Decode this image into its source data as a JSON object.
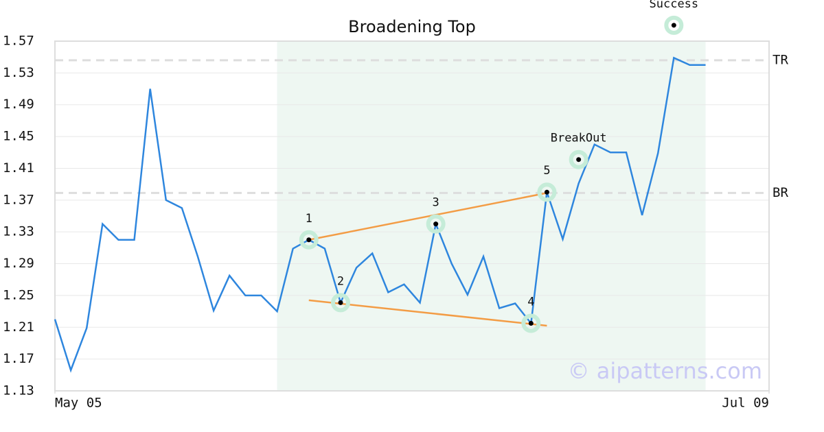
{
  "chart_data": {
    "type": "line",
    "title": "Broadening Top",
    "color": "#2e86de",
    "x": [
      0,
      1,
      2,
      3,
      4,
      5,
      6,
      7,
      8,
      9,
      10,
      11,
      12,
      13,
      14,
      15,
      16,
      17,
      18,
      19,
      20,
      21,
      22,
      23,
      24,
      25,
      26,
      27,
      28,
      29,
      30,
      31,
      32,
      33,
      34,
      35,
      36,
      37,
      38,
      39,
      40,
      41
    ],
    "values": [
      1.22,
      1.156,
      1.209,
      1.34,
      1.32,
      1.32,
      1.51,
      1.37,
      1.36,
      1.299,
      1.231,
      1.275,
      1.25,
      1.25,
      1.23,
      1.309,
      1.32,
      1.309,
      1.241,
      1.285,
      1.303,
      1.254,
      1.264,
      1.241,
      1.34,
      1.29,
      1.251,
      1.299,
      1.234,
      1.24,
      1.215,
      1.38,
      1.321,
      1.391,
      1.44,
      1.43,
      1.43,
      1.351,
      1.429,
      1.549,
      1.54,
      1.54
    ],
    "xlim": [
      0,
      45
    ],
    "xticks": [
      {
        "value": 0,
        "label": "May 05"
      },
      {
        "value": 45,
        "label": "Jul 09"
      }
    ],
    "ylim": [
      1.13,
      1.57
    ],
    "yticks": [
      1.13,
      1.17,
      1.21,
      1.25,
      1.29,
      1.33,
      1.37,
      1.41,
      1.45,
      1.49,
      1.53,
      1.57
    ],
    "grid": true,
    "highlight": [
      14,
      41
    ],
    "levels": [
      {
        "label": "TR",
        "value": 1.546
      },
      {
        "label": "BR",
        "value": 1.379
      }
    ],
    "trendlines": [
      {
        "color": "#f39c45",
        "x": [
          16,
          31
        ],
        "y": [
          1.32,
          1.379
        ]
      },
      {
        "color": "#f39c45",
        "x": [
          16,
          31
        ],
        "y": [
          1.244,
          1.212
        ]
      }
    ],
    "markers": [
      {
        "label": "1",
        "x": 16,
        "y": 1.32
      },
      {
        "label": "2",
        "x": 18,
        "y": 1.241
      },
      {
        "label": "3",
        "x": 24,
        "y": 1.34
      },
      {
        "label": "4",
        "x": 30,
        "y": 1.215
      },
      {
        "label": "5",
        "x": 31,
        "y": 1.38
      },
      {
        "label": "BreakOut",
        "x": 33,
        "y": 1.421
      },
      {
        "label": "Success",
        "x": 39,
        "y": 1.59
      }
    ],
    "watermark": "© aipatterns.com"
  }
}
